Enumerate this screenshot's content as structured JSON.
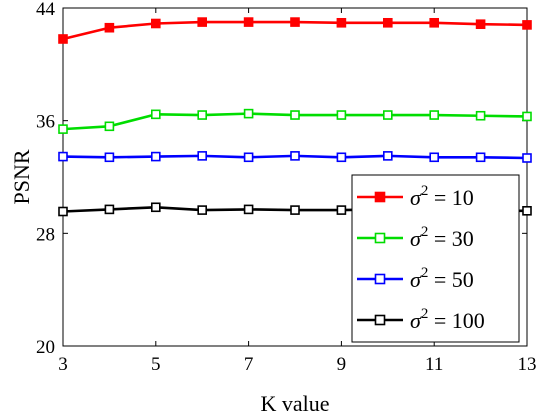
{
  "chart_data": {
    "type": "line",
    "xlabel": "K value",
    "ylabel": "PSNR",
    "xlim": [
      3,
      13
    ],
    "ylim": [
      20,
      44
    ],
    "xticks": [
      3,
      5,
      7,
      9,
      11,
      13
    ],
    "yticks": [
      20,
      28,
      36,
      44
    ],
    "grid": false,
    "legend_position": "right",
    "x": [
      3,
      4,
      5,
      6,
      7,
      8,
      9,
      10,
      11,
      12,
      13
    ],
    "series": [
      {
        "name": "σ² = 10",
        "legend_symbol": "σ",
        "legend_sup": "2",
        "legend_value": " = 10",
        "color": "#ff0000",
        "marker": "filled-square",
        "values": [
          41.8,
          42.6,
          42.9,
          43.0,
          43.0,
          43.0,
          42.95,
          42.95,
          42.95,
          42.85,
          42.8
        ]
      },
      {
        "name": "σ² = 30",
        "legend_symbol": "σ",
        "legend_sup": "2",
        "legend_value": " = 30",
        "color": "#00dd00",
        "marker": "open-square",
        "values": [
          35.4,
          35.6,
          36.45,
          36.4,
          36.5,
          36.4,
          36.4,
          36.4,
          36.4,
          36.35,
          36.3
        ]
      },
      {
        "name": "σ² = 50",
        "legend_symbol": "σ",
        "legend_sup": "2",
        "legend_value": " = 50",
        "color": "#0000ff",
        "marker": "open-square",
        "values": [
          33.45,
          33.4,
          33.45,
          33.5,
          33.4,
          33.5,
          33.4,
          33.5,
          33.4,
          33.4,
          33.35
        ]
      },
      {
        "name": "σ² = 100",
        "legend_symbol": "σ",
        "legend_sup": "2",
        "legend_value": " = 100",
        "color": "#000000",
        "marker": "open-square",
        "values": [
          29.55,
          29.7,
          29.85,
          29.65,
          29.7,
          29.65,
          29.65,
          29.7,
          29.6,
          29.6,
          29.6
        ]
      }
    ]
  }
}
